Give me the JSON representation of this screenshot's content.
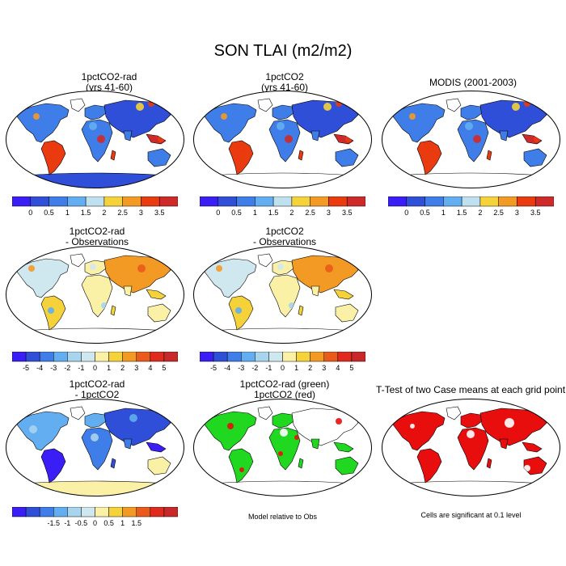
{
  "figure": {
    "title": "SON TLAI (m2/m2)"
  },
  "panels": [
    {
      "id": "p1",
      "title": "1pctCO2-rad\n(yrs 41-60)",
      "style": "abs",
      "antarctica": "blue"
    },
    {
      "id": "p2",
      "title": "1pctCO2\n(yrs 41-60)",
      "style": "abs",
      "antarctica": "white"
    },
    {
      "id": "p3",
      "title": "MODIS (2001-2003)",
      "style": "abs",
      "antarctica": "white"
    },
    {
      "id": "p4",
      "title": "1pctCO2-rad\n- Observations",
      "style": "diff",
      "antarctica": "white"
    },
    {
      "id": "p5",
      "title": "1pctCO2\n- Observations",
      "style": "diff",
      "antarctica": "white"
    },
    {
      "id": "p6",
      "title": "1pctCO2-rad\n- 1pctCO2",
      "style": "diff2",
      "antarctica": "yellow"
    },
    {
      "id": "p7",
      "title": "1pctCO2-rad (green)\n1pctCO2 (red)",
      "style": "green",
      "antarctica": "white"
    },
    {
      "id": "p8",
      "title": "T-Test of two Case means at each grid point",
      "style": "red",
      "antarctica": "white"
    }
  ],
  "colorbars": {
    "absolute": {
      "colors": [
        "#3a1ef5",
        "#2f4fd8",
        "#3f7ee8",
        "#62aef0",
        "#bfe0ef",
        "#f5d23a",
        "#f39a25",
        "#ea3a10",
        "#cf2a2a"
      ],
      "labels": [
        "0",
        "0.5",
        "1",
        "1.5",
        "2",
        "2.5",
        "3",
        "3.5"
      ]
    },
    "obs_diff": {
      "colors": [
        "#3a1ef5",
        "#2f4fd8",
        "#3f7ee8",
        "#62aef0",
        "#a8d4ee",
        "#cfe8ef",
        "#fbf1a6",
        "#f5d23a",
        "#f39a25",
        "#ea5a1a",
        "#e02a20",
        "#c82828"
      ],
      "labels": [
        "-5",
        "-4",
        "-3",
        "-2",
        "-1",
        "0",
        "1",
        "2",
        "3",
        "4",
        "5"
      ]
    },
    "case_diff": {
      "colors": [
        "#3a1ef5",
        "#2f4fd8",
        "#3f7ee8",
        "#62aef0",
        "#a8d4ee",
        "#cfe8ef",
        "#fbf1a6",
        "#f5d23a",
        "#f39a25",
        "#ea5a1a",
        "#e02a20",
        "#c82828"
      ],
      "labels": [
        "-1.5",
        "-1",
        "-0.5",
        "0",
        "0.5",
        "1",
        "1.5"
      ]
    }
  },
  "notes": {
    "model_relative": "Model relative to Obs",
    "significance": "Cells are significant at 0.1 level"
  }
}
